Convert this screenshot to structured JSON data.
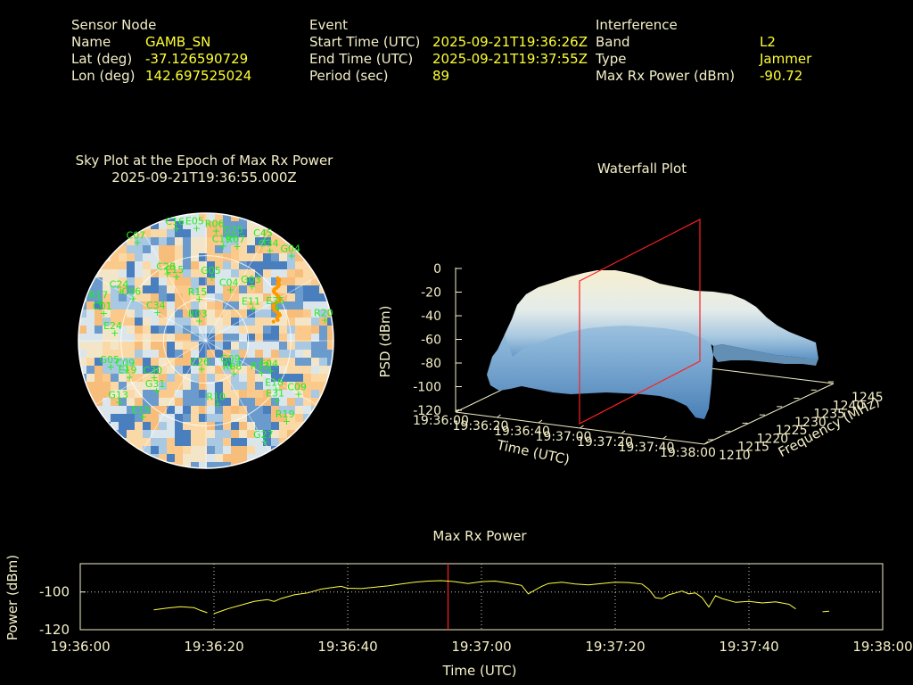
{
  "info": {
    "sensor": {
      "heading": "Sensor Node",
      "rows": [
        {
          "label": "Name",
          "value": "GAMB_SN"
        },
        {
          "label": "Lat (deg)",
          "value": "-37.126590729"
        },
        {
          "label": "Lon (deg)",
          "value": "142.697525024"
        }
      ]
    },
    "event": {
      "heading": "Event",
      "rows": [
        {
          "label": "Start Time (UTC)",
          "value": "2025-09-21T19:36:26Z"
        },
        {
          "label": "End Time (UTC)",
          "value": "2025-09-21T19:37:55Z"
        },
        {
          "label": "Period (sec)",
          "value": "89"
        }
      ]
    },
    "interference": {
      "heading": "Interference",
      "rows": [
        {
          "label": "Band",
          "value": "L2"
        },
        {
          "label": "Type",
          "value": "Jammer"
        },
        {
          "label": "Max Rx Power (dBm)",
          "value": "-90.72"
        }
      ]
    }
  },
  "colors": {
    "label": "#f5f0c8",
    "value": "#ffff33",
    "satellite": "#22ee22",
    "marker": "#ff2020",
    "trace": "#ffff44",
    "jammer_track": "#ff9900"
  },
  "chart_data": [
    {
      "type": "scatter",
      "name": "sky-plot",
      "title": "Sky Plot at the Epoch of Max Rx Power",
      "subtitle": "2025-09-21T19:36:55.000Z",
      "satellites": [
        {
          "id": "C07",
          "az": 325,
          "el": 5
        },
        {
          "id": "C16",
          "az": 345,
          "el": 8
        },
        {
          "id": "E05",
          "az": 355,
          "el": 10
        },
        {
          "id": "R06",
          "az": 5,
          "el": 12
        },
        {
          "id": "G25",
          "az": 15,
          "el": 14
        },
        {
          "id": "R07",
          "az": 18,
          "el": 20
        },
        {
          "id": "C19",
          "az": 10,
          "el": 22
        },
        {
          "id": "C45",
          "az": 30,
          "el": 8
        },
        {
          "id": "G34",
          "az": 35,
          "el": 12
        },
        {
          "id": "G04",
          "az": 45,
          "el": 5
        },
        {
          "id": "C28",
          "az": 330,
          "el": 35
        },
        {
          "id": "E15",
          "az": 335,
          "el": 40
        },
        {
          "id": "G05",
          "az": 5,
          "el": 45
        },
        {
          "id": "G03",
          "az": 40,
          "el": 40
        },
        {
          "id": "C04",
          "az": 25,
          "el": 50
        },
        {
          "id": "E35",
          "az": 65,
          "el": 35
        },
        {
          "id": "E11",
          "az": 55,
          "el": 50
        },
        {
          "id": "R15",
          "az": 350,
          "el": 60
        },
        {
          "id": "R03",
          "az": 340,
          "el": 75
        },
        {
          "id": "R20",
          "az": 80,
          "el": 5
        },
        {
          "id": "R17",
          "az": 290,
          "el": 10
        },
        {
          "id": "C24",
          "az": 300,
          "el": 20
        },
        {
          "id": "C01",
          "az": 285,
          "el": 15
        },
        {
          "id": "C06",
          "az": 300,
          "el": 30
        },
        {
          "id": "E24",
          "az": 275,
          "el": 25
        },
        {
          "id": "C34",
          "az": 300,
          "el": 50
        },
        {
          "id": "E04",
          "az": 115,
          "el": 40
        },
        {
          "id": "R13",
          "az": 120,
          "el": 45
        },
        {
          "id": "G09",
          "az": 135,
          "el": 65
        },
        {
          "id": "R08",
          "az": 140,
          "el": 60
        },
        {
          "id": "E18",
          "az": 125,
          "el": 30
        },
        {
          "id": "E31",
          "az": 130,
          "el": 25
        },
        {
          "id": "C09",
          "az": 120,
          "el": 15
        },
        {
          "id": "R19",
          "az": 135,
          "el": 10
        },
        {
          "id": "G27",
          "az": 150,
          "el": 8
        },
        {
          "id": "R10",
          "az": 170,
          "el": 45
        },
        {
          "id": "C26",
          "az": 190,
          "el": 70
        },
        {
          "id": "G31",
          "az": 225,
          "el": 40
        },
        {
          "id": "C30",
          "az": 235,
          "el": 45
        },
        {
          "id": "E19",
          "az": 245,
          "el": 30
        },
        {
          "id": "E15",
          "az": 220,
          "el": 20
        },
        {
          "id": "G13",
          "az": 235,
          "el": 15
        },
        {
          "id": "G05",
          "az": 255,
          "el": 20
        },
        {
          "id": "C09",
          "az": 250,
          "el": 30
        }
      ],
      "elevation_rings": [
        0,
        30,
        60
      ]
    },
    {
      "type": "area",
      "name": "waterfall-plot",
      "title": "Waterfall Plot",
      "zlabel": "PSD (dBm)",
      "xlabel": "Time (UTC)",
      "ylabel": "Frequency (MHz)",
      "z_ticks": [
        "0",
        "-20",
        "-40",
        "-60",
        "-80",
        "-100",
        "-120"
      ],
      "time_ticks": [
        "19:36:00",
        "19:36:20",
        "19:36:40",
        "19:37:00",
        "19:37:20",
        "19:37:40",
        "19:38:00"
      ],
      "freq_ticks": [
        "1210",
        "1215",
        "1220",
        "1225",
        "1230",
        "1235",
        "1240",
        "1245"
      ],
      "zlim": [
        -120,
        0
      ],
      "marker_time": "19:36:55"
    },
    {
      "type": "line",
      "name": "max-rx-power",
      "title": "Max Rx Power",
      "xlabel": "Time (UTC)",
      "ylabel": "Power (dBm)",
      "x_ticks": [
        "19:36:00",
        "19:36:20",
        "19:36:40",
        "19:37:00",
        "19:37:20",
        "19:37:40",
        "19:38:00"
      ],
      "y_ticks": [
        "-100",
        "-120"
      ],
      "xlim_sec": [
        0,
        120
      ],
      "ylim": [
        -120,
        -85
      ],
      "marker_sec": 55,
      "segments": [
        [
          [
            11,
            -109.5
          ],
          [
            13,
            -108.5
          ],
          [
            15,
            -107.8
          ],
          [
            17,
            -108.3
          ],
          [
            18,
            -109.8
          ],
          [
            19,
            -111
          ]
        ],
        [
          [
            20,
            -111.5
          ],
          [
            22,
            -109
          ],
          [
            24,
            -107
          ],
          [
            26,
            -105
          ],
          [
            28,
            -104
          ],
          [
            29,
            -105
          ],
          [
            30,
            -103.5
          ],
          [
            32,
            -101.5
          ],
          [
            34,
            -100.5
          ],
          [
            36,
            -98.5
          ],
          [
            38,
            -97.5
          ],
          [
            39,
            -97
          ],
          [
            40,
            -98
          ],
          [
            42,
            -98.2
          ],
          [
            44,
            -97.5
          ],
          [
            46,
            -96.8
          ],
          [
            48,
            -95.8
          ],
          [
            50,
            -94.8
          ],
          [
            52,
            -94.2
          ],
          [
            54,
            -94
          ],
          [
            56,
            -94.5
          ],
          [
            58,
            -95.5
          ],
          [
            60,
            -94.5
          ],
          [
            62,
            -94.2
          ],
          [
            64,
            -95.2
          ],
          [
            66,
            -96.5
          ],
          [
            67,
            -101
          ],
          [
            68,
            -99
          ],
          [
            69,
            -97
          ],
          [
            70,
            -95.5
          ],
          [
            72,
            -94.8
          ],
          [
            74,
            -95.8
          ],
          [
            76,
            -96.2
          ],
          [
            78,
            -95.5
          ],
          [
            80,
            -94.8
          ],
          [
            82,
            -95
          ],
          [
            84,
            -95.8
          ],
          [
            85,
            -98.5
          ],
          [
            86,
            -103
          ],
          [
            87,
            -103.5
          ],
          [
            88,
            -101.5
          ],
          [
            89,
            -100.5
          ],
          [
            90,
            -99.5
          ],
          [
            91,
            -101
          ],
          [
            92,
            -100.5
          ],
          [
            93,
            -103
          ],
          [
            94,
            -108
          ],
          [
            95,
            -102
          ],
          [
            96,
            -103.5
          ],
          [
            98,
            -105.5
          ],
          [
            100,
            -105
          ],
          [
            102,
            -105.8
          ],
          [
            104,
            -105.2
          ],
          [
            106,
            -106.5
          ],
          [
            107,
            -109
          ]
        ],
        [
          [
            111,
            -110.5
          ],
          [
            112,
            -110.2
          ]
        ]
      ]
    }
  ]
}
